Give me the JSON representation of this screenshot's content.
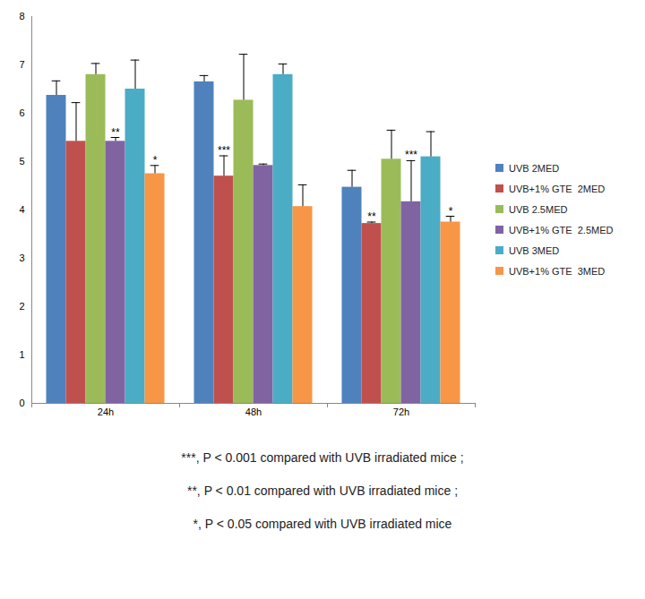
{
  "chart_data": {
    "type": "bar",
    "categories": [
      "24h",
      "48h",
      "72h"
    ],
    "series": [
      {
        "name": "UVB 2MED",
        "color": "#4f81bd",
        "values": [
          6.37,
          6.65,
          4.47
        ],
        "errors": [
          0.3,
          0.13,
          0.35
        ],
        "significance": [
          null,
          null,
          null
        ]
      },
      {
        "name": "UVB+1% GTE  2MED",
        "color": "#c0504d",
        "values": [
          5.42,
          4.7,
          3.72
        ],
        "errors": [
          0.8,
          0.42,
          0.03
        ],
        "significance": [
          null,
          "***",
          "**"
        ]
      },
      {
        "name": "UVB 2.5MED",
        "color": "#9bbb59",
        "values": [
          6.8,
          6.27,
          5.05
        ],
        "errors": [
          0.23,
          0.95,
          0.6
        ],
        "significance": [
          null,
          null,
          null
        ]
      },
      {
        "name": "UVB+1% GTE  2.5MED",
        "color": "#8064a2",
        "values": [
          5.42,
          4.92,
          4.17
        ],
        "errors": [
          0.08,
          0.03,
          0.85
        ],
        "significance": [
          "**",
          null,
          "***"
        ]
      },
      {
        "name": "UVB 3MED",
        "color": "#4bacc6",
        "values": [
          6.5,
          6.8,
          5.1
        ],
        "errors": [
          0.6,
          0.22,
          0.52
        ],
        "significance": [
          null,
          null,
          null
        ]
      },
      {
        "name": "UVB+1% GTE  3MED",
        "color": "#f79646",
        "values": [
          4.75,
          4.07,
          3.75
        ],
        "errors": [
          0.17,
          0.45,
          0.12
        ],
        "significance": [
          "*",
          null,
          "*"
        ]
      }
    ],
    "ylim": [
      0,
      8
    ],
    "yticks": [
      0,
      1,
      2,
      3,
      4,
      5,
      6,
      7,
      8
    ],
    "grid": false,
    "legend": "right",
    "annotations": [
      "***, P < 0.001 compared with UVB irradiated mice ;",
      "**, P < 0.01 compared with UVB irradiated mice ;",
      "*, P < 0.05 compared with UVB irradiated mice"
    ]
  }
}
